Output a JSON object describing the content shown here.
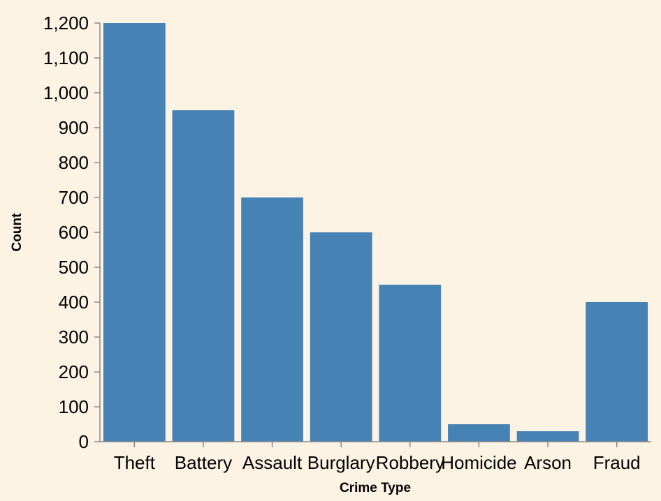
{
  "chart_data": {
    "type": "bar",
    "categories": [
      "Theft",
      "Battery",
      "Assault",
      "Burglary",
      "Robbery",
      "Homicide",
      "Arson",
      "Fraud"
    ],
    "values": [
      1200,
      950,
      700,
      600,
      450,
      50,
      30,
      400
    ],
    "xlabel": "Crime Type",
    "ylabel": "Count",
    "ylim": [
      0,
      1200
    ],
    "yticks": [
      0,
      100,
      200,
      300,
      400,
      500,
      600,
      700,
      800,
      900,
      1000,
      1100,
      1200
    ],
    "grid": false,
    "bar_color": "#4682b4",
    "background_color": "#fdf3e5"
  }
}
